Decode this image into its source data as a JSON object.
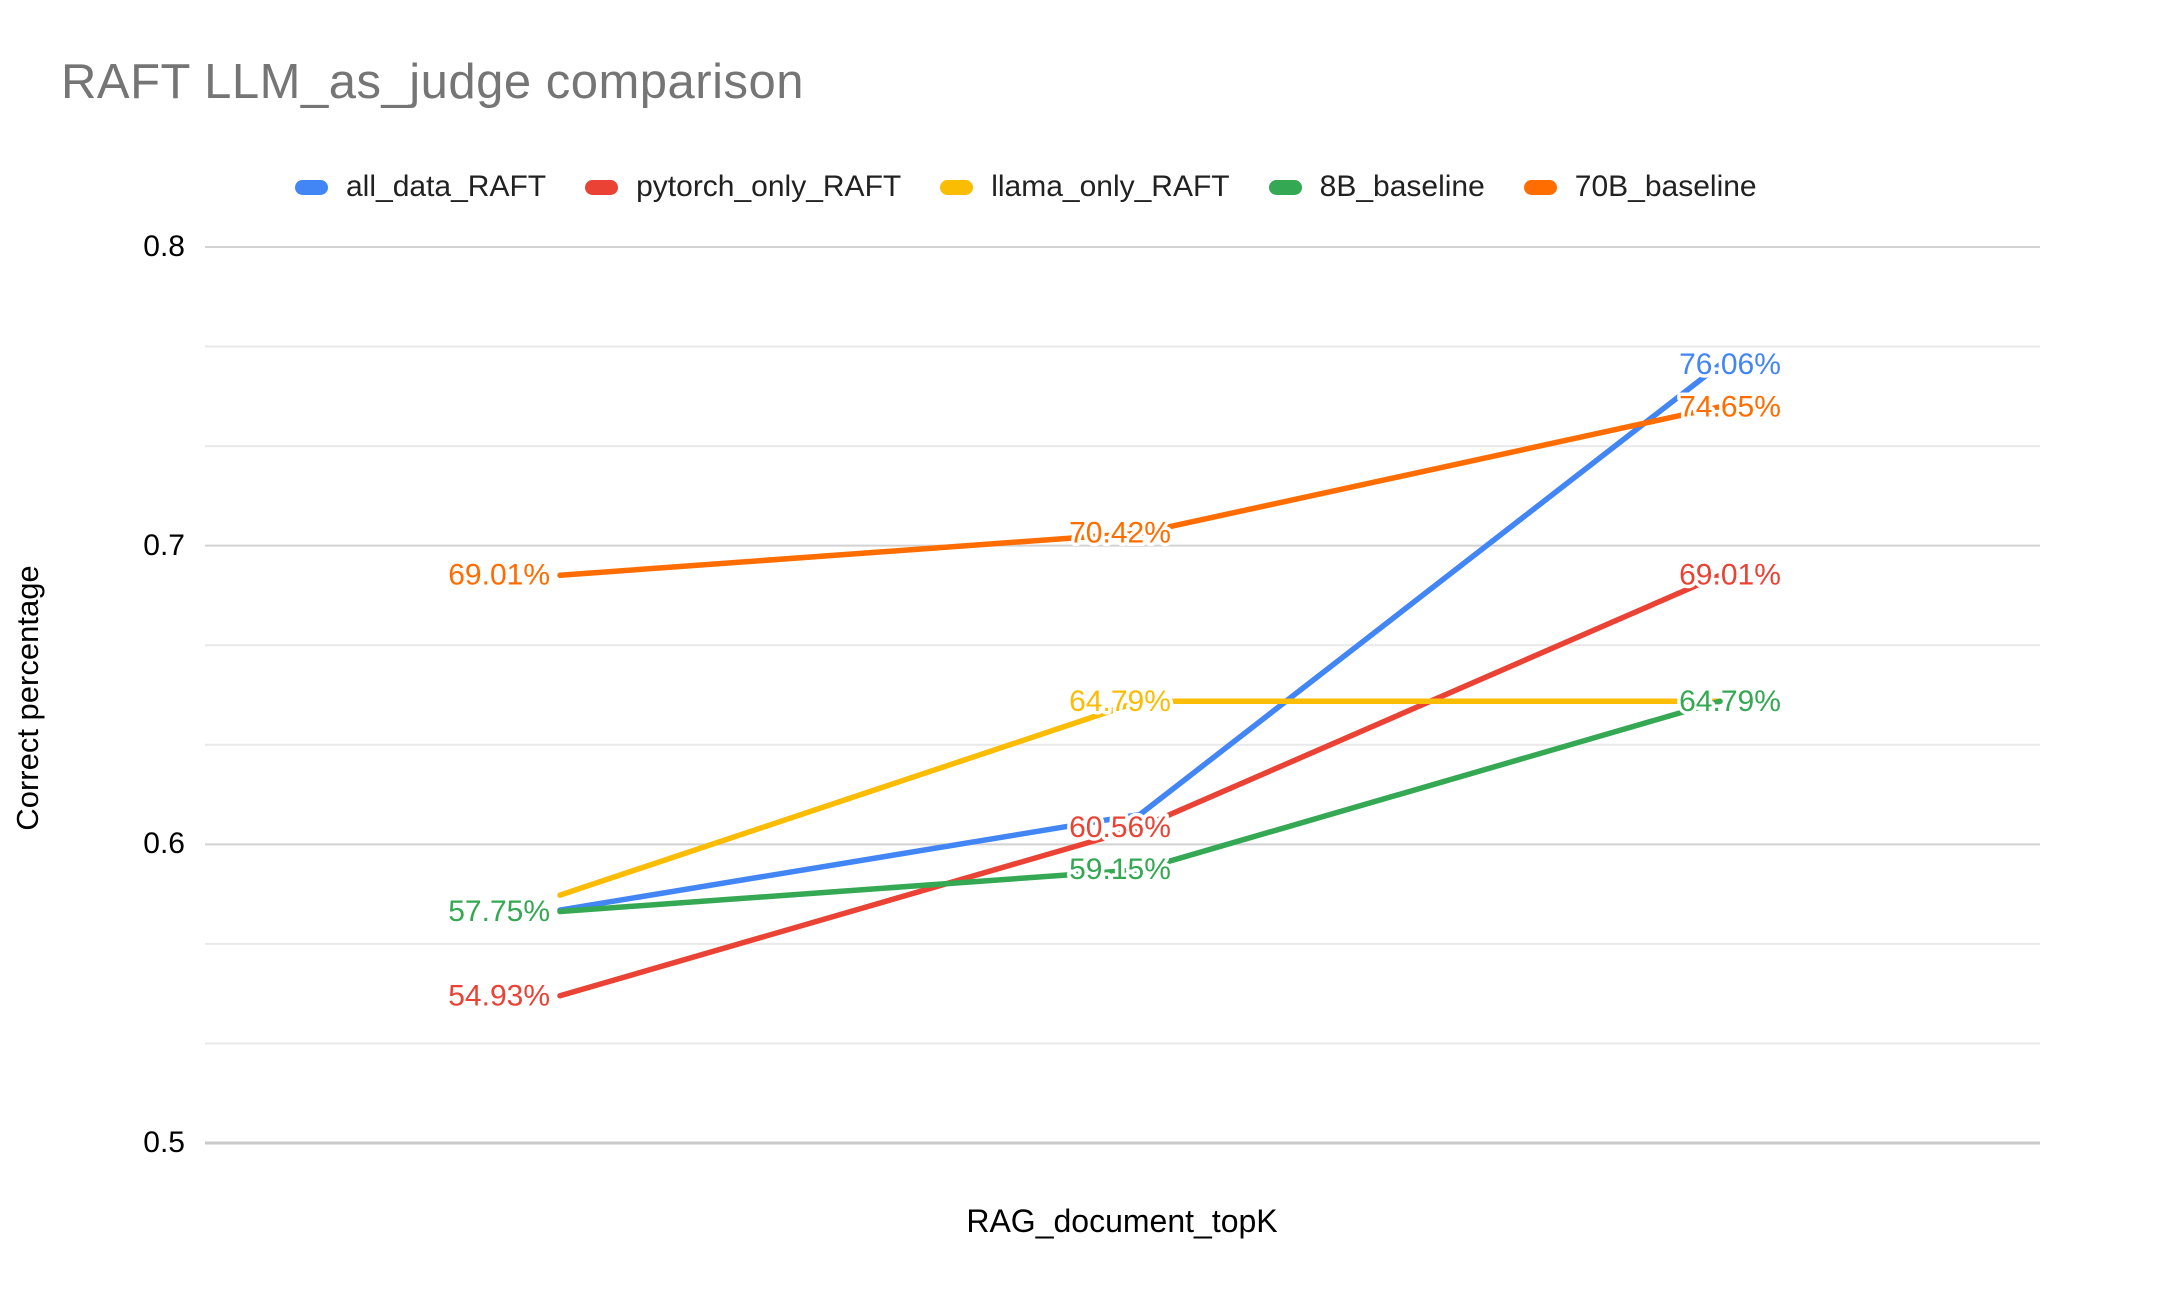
{
  "title": "RAFT LLM_as_judge comparison",
  "chart_data": {
    "type": "line",
    "title": "RAFT LLM_as_judge comparison",
    "xlabel": "RAG_document_topK",
    "ylabel": "Correct percentage",
    "categories": [
      "",
      "",
      ""
    ],
    "x_tick_labels_visible": false,
    "y_axis": {
      "tick_labels": [
        "0.8",
        "0.7",
        "0.6",
        "0.5"
      ],
      "tick_values": [
        0.8,
        0.7,
        0.6,
        0.5
      ],
      "range": [
        0.5,
        0.8
      ],
      "minor_gridlines_per_major": 2
    },
    "legend_position": "top",
    "grid": true,
    "series": [
      {
        "name": "all_data_RAFT",
        "color": "#4285F4",
        "values": [
          0.578,
          0.61,
          0.7606
        ],
        "point_labels": [
          null,
          null,
          "76.06%"
        ]
      },
      {
        "name": "pytorch_only_RAFT",
        "color": "#EA4335",
        "values": [
          0.5493,
          0.6056,
          0.6901
        ],
        "point_labels": [
          "54.93%",
          "60.56%",
          "69.01%"
        ]
      },
      {
        "name": "llama_only_RAFT",
        "color": "#FBBC04",
        "values": [
          0.583,
          0.6479,
          0.6479
        ],
        "point_labels": [
          null,
          "64.79%",
          null
        ]
      },
      {
        "name": "8B_baseline",
        "color": "#34A853",
        "values": [
          0.5775,
          0.5915,
          0.6479
        ],
        "point_labels": [
          "57.75%",
          "59.15%",
          "64.79%"
        ]
      },
      {
        "name": "70B_baseline",
        "color": "#FF6D01",
        "values": [
          0.6901,
          0.7042,
          0.7465
        ],
        "point_labels": [
          "69.01%",
          "70.42%",
          "74.65%"
        ]
      }
    ],
    "gridline_major_color": "#d2d2d2",
    "gridline_minor_color": "#e9e9e9",
    "baseline_color": "#c9c9c9"
  }
}
